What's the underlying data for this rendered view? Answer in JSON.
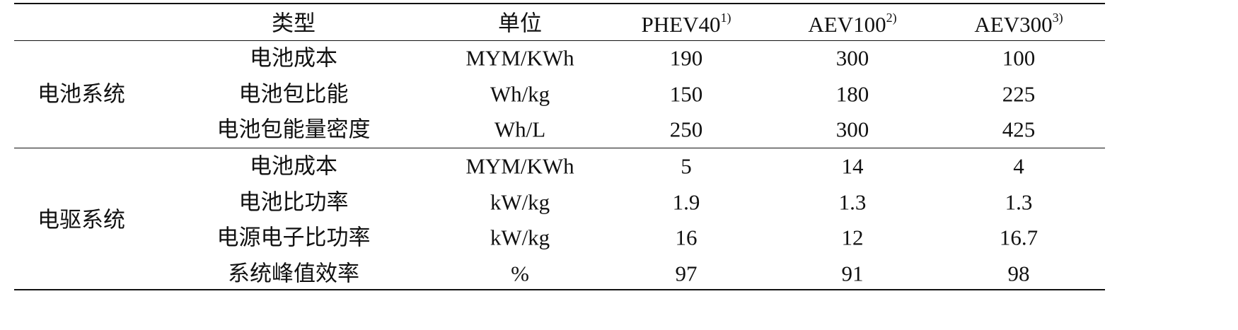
{
  "table": {
    "header": [
      {
        "text": "类型"
      },
      {
        "text": "单位"
      },
      {
        "text": "PHEV40",
        "note": "1)"
      },
      {
        "text": "AEV100",
        "note": "2)"
      },
      {
        "text": "AEV300",
        "note": "3)"
      }
    ],
    "groups": [
      {
        "name": "电池系统",
        "rows": [
          [
            "电池成本",
            "MYM/KWh",
            190,
            300,
            100
          ],
          [
            "电池包比能",
            "Wh/kg",
            150,
            180,
            225
          ],
          [
            "电池包能量密度",
            "Wh/L",
            250,
            300,
            425
          ]
        ]
      },
      {
        "name": "电驱系统",
        "rows": [
          [
            "电池成本",
            "MYM/KWh",
            5,
            14,
            4
          ],
          [
            "电池比功率",
            "kW/kg",
            1.9,
            1.3,
            1.3
          ],
          [
            "电源电子比功率",
            "kW/kg",
            16,
            12,
            16.7
          ],
          [
            "系统峰值效率",
            "%",
            97,
            91,
            98
          ]
        ]
      }
    ]
  }
}
